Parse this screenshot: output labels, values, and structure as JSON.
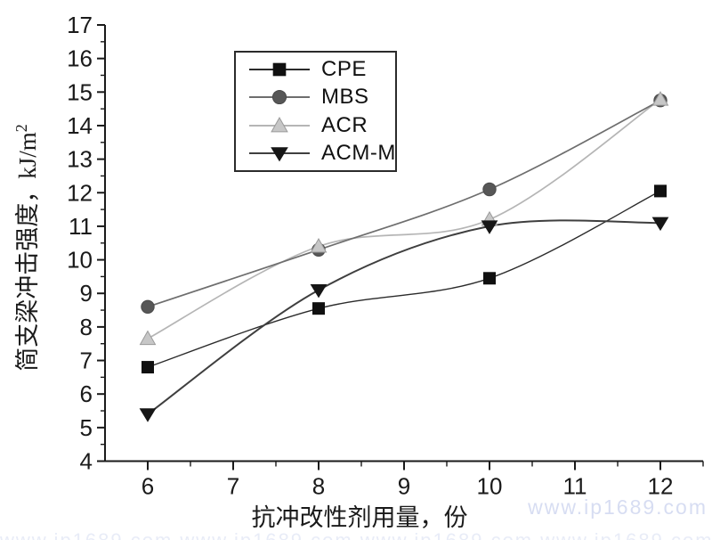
{
  "figure": {
    "background": "#ffffff"
  },
  "watermark": {
    "text": "www.ip1689.com",
    "color": "#d7ddf2"
  },
  "chart_data": {
    "type": "line",
    "title": "",
    "xlabel": "抗冲改性剂用量，份",
    "ylabel": "简支梁冲击强度，kJ/m²",
    "ylabel_main": "简支梁冲击强度，kJ/m",
    "ylabel_superscript": "2",
    "x": [
      6,
      8,
      10,
      12
    ],
    "series": [
      {
        "name": "CPE",
        "marker": "square",
        "marker_color": "#101010",
        "marker_edge": "#101010",
        "line_color": "#2b2b2b",
        "line_width": 1.4,
        "values": [
          6.8,
          8.55,
          9.45,
          12.05
        ]
      },
      {
        "name": "MBS",
        "marker": "circle",
        "marker_color": "#575757",
        "marker_edge": "#4a4a4a",
        "line_color": "#6e6e6e",
        "line_width": 1.7,
        "values": [
          8.6,
          10.3,
          12.1,
          14.75
        ]
      },
      {
        "name": "ACR",
        "marker": "triangle-up",
        "marker_color": "#c7c7c7",
        "marker_edge": "#9a9a9a",
        "line_color": "#b5b5b5",
        "line_width": 1.7,
        "values": [
          7.65,
          10.4,
          11.2,
          14.78
        ]
      },
      {
        "name": "ACM-M",
        "marker": "triangle-down",
        "marker_color": "#161616",
        "marker_edge": "#161616",
        "line_color": "#3f3f3f",
        "line_width": 2.0,
        "values": [
          5.4,
          9.1,
          11.0,
          11.1
        ]
      }
    ],
    "xlim": [
      5.5,
      12.5
    ],
    "ylim": [
      4,
      17
    ],
    "x_ticks": [
      6,
      7,
      8,
      9,
      10,
      11,
      12
    ],
    "y_ticks": [
      4,
      5,
      6,
      7,
      8,
      9,
      10,
      11,
      12,
      13,
      14,
      15,
      16,
      17
    ],
    "minor_tick_step": 0.5,
    "grid": false,
    "axis_color": "#1a1a1a",
    "legend": {
      "position": "upper-center-inside",
      "entries": [
        "CPE",
        "MBS",
        "ACR",
        "ACM-M"
      ]
    }
  }
}
